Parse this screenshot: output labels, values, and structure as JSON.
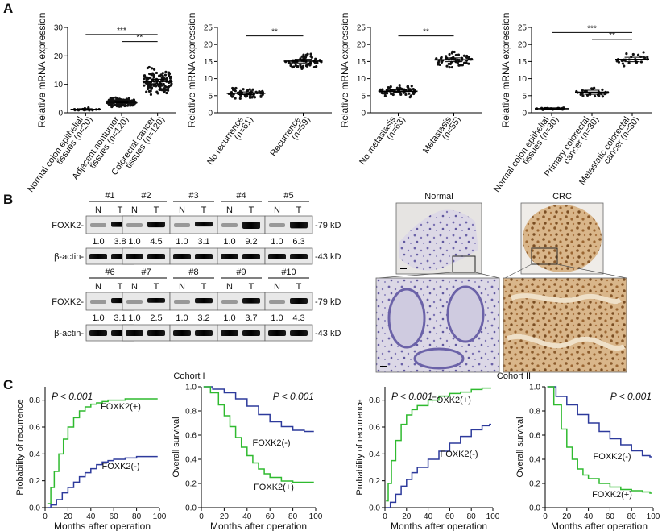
{
  "panel_labels": {
    "a": "A",
    "b": "B",
    "c": "C"
  },
  "chart_data": [
    {
      "type": "scatter",
      "ylabel": "Relative mRNA expression",
      "ylim": [
        0,
        30
      ],
      "yticks": [
        "0",
        "10",
        "20",
        "30"
      ],
      "groups": [
        {
          "line1": "Normal colon epithelial",
          "line2": "tissues (n=20)",
          "center": 1.2,
          "spread": 0.8,
          "n": 20
        },
        {
          "line1": "Adjacent nontumor",
          "line2": "tissues (n=120)",
          "center": 3.8,
          "spread": 2.5,
          "n": 120
        },
        {
          "line1": "Colorectal cancer",
          "line2": "tissues (n=120)",
          "center": 11.0,
          "spread": 7.0,
          "n": 120
        }
      ],
      "sig": [
        {
          "from": 0,
          "to": 2,
          "label": "***",
          "y": 27.5
        },
        {
          "from": 1,
          "to": 2,
          "label": "**",
          "y": 25
        }
      ]
    },
    {
      "type": "scatter",
      "ylabel": "Relative mRNA expression",
      "ylim": [
        0,
        25
      ],
      "yticks": [
        "0",
        "5",
        "10",
        "15",
        "20",
        "25"
      ],
      "groups": [
        {
          "line1": "No recurrence",
          "line2": "(n=61)",
          "center": 5.7,
          "spread": 2.6,
          "n": 61
        },
        {
          "line1": "Recurrence",
          "line2": "(n=59)",
          "center": 15.1,
          "spread": 3.5,
          "n": 59
        }
      ],
      "sig": [
        {
          "from": 0,
          "to": 1,
          "label": "**",
          "y": 22.5
        }
      ]
    },
    {
      "type": "scatter",
      "ylabel": "Relative mRNA expression",
      "ylim": [
        0,
        25
      ],
      "yticks": [
        "0",
        "5",
        "10",
        "15",
        "20",
        "25"
      ],
      "groups": [
        {
          "line1": "No metastasis",
          "line2": "(n=63)",
          "center": 6.3,
          "spread": 3.0,
          "n": 63
        },
        {
          "line1": "Metastasis",
          "line2": "(n=55)",
          "center": 15.5,
          "spread": 3.5,
          "n": 55
        }
      ],
      "sig": [
        {
          "from": 0,
          "to": 1,
          "label": "**",
          "y": 22.5
        }
      ]
    },
    {
      "type": "scatter",
      "ylabel": "Relative mRNA expression",
      "ylim": [
        0,
        25
      ],
      "yticks": [
        "0",
        "5",
        "10",
        "15",
        "20",
        "25"
      ],
      "groups": [
        {
          "line1": "Normal colon epithelial",
          "line2": "tissues (n=30)",
          "center": 1.2,
          "spread": 0.5,
          "n": 30
        },
        {
          "line1": "Primary colorectal",
          "line2": "cancer (n=30)",
          "center": 6.0,
          "spread": 2.8,
          "n": 30
        },
        {
          "line1": "Metastatic colorectal",
          "line2": "cancer (n=30)",
          "center": 15.6,
          "spread": 3.0,
          "n": 30
        }
      ],
      "sig": [
        {
          "from": 0,
          "to": 2,
          "label": "***",
          "y": 23.5
        },
        {
          "from": 1,
          "to": 2,
          "label": "**",
          "y": 21.5
        }
      ]
    },
    {
      "type": "line",
      "cohort": "Cohort I",
      "pvalue": "P < 0.001",
      "ylabel": "Probability of recurrence",
      "xlabel": "Months after operation",
      "xlim": [
        0,
        100
      ],
      "ylim": [
        0,
        0.9
      ],
      "xticks": [
        "0",
        "20",
        "40",
        "60",
        "80",
        "100"
      ],
      "yticks": [
        "0.0",
        "0.2",
        "0.4",
        "0.6",
        "0.8"
      ],
      "series": [
        {
          "name": "FOXK2(+)",
          "color": "#2fba2f",
          "x": [
            2,
            5,
            8,
            12,
            16,
            20,
            25,
            30,
            35,
            40,
            45,
            50,
            55,
            60,
            70,
            80,
            90,
            97
          ],
          "y": [
            0.03,
            0.15,
            0.27,
            0.4,
            0.51,
            0.6,
            0.67,
            0.72,
            0.75,
            0.77,
            0.78,
            0.79,
            0.8,
            0.8,
            0.81,
            0.81,
            0.81,
            0.81
          ]
        },
        {
          "name": "FOXK2(-)",
          "color": "#2d3a9c",
          "x": [
            2,
            5,
            10,
            15,
            20,
            25,
            30,
            35,
            40,
            45,
            50,
            55,
            60,
            70,
            80,
            90,
            97
          ],
          "y": [
            0.0,
            0.02,
            0.06,
            0.11,
            0.15,
            0.19,
            0.23,
            0.26,
            0.29,
            0.32,
            0.34,
            0.35,
            0.36,
            0.37,
            0.38,
            0.38,
            0.38
          ]
        }
      ]
    },
    {
      "type": "line",
      "pvalue": "P < 0.001",
      "ylabel": "Overall survival",
      "xlabel": "Months after operation",
      "xlim": [
        0,
        100
      ],
      "ylim": [
        0,
        1.0
      ],
      "xticks": [
        "0",
        "20",
        "40",
        "60",
        "80",
        "100"
      ],
      "yticks": [
        "0.0",
        "0.2",
        "0.4",
        "0.6",
        "0.8",
        "1.0"
      ],
      "series": [
        {
          "name": "FOXK2(-)",
          "color": "#2d3a9c",
          "x": [
            2,
            10,
            20,
            30,
            40,
            50,
            60,
            70,
            80,
            90,
            97
          ],
          "y": [
            1.0,
            0.98,
            0.95,
            0.9,
            0.84,
            0.77,
            0.71,
            0.67,
            0.64,
            0.63,
            0.63
          ]
        },
        {
          "name": "FOXK2(+)",
          "color": "#2fba2f",
          "x": [
            2,
            8,
            15,
            20,
            25,
            30,
            35,
            40,
            45,
            50,
            55,
            60,
            70,
            80,
            90,
            97
          ],
          "y": [
            1.0,
            0.95,
            0.85,
            0.76,
            0.67,
            0.58,
            0.5,
            0.43,
            0.37,
            0.32,
            0.28,
            0.25,
            0.22,
            0.21,
            0.21,
            0.21
          ]
        }
      ]
    },
    {
      "type": "line",
      "cohort": "Cohort II",
      "pvalue": "P < 0.001",
      "ylabel": "Probability of recurrence",
      "xlabel": "Months after operation",
      "xlim": [
        0,
        100
      ],
      "ylim": [
        0,
        0.9
      ],
      "xticks": [
        "0",
        "20",
        "40",
        "60",
        "80",
        "100"
      ],
      "yticks": [
        "0.0",
        "0.2",
        "0.4",
        "0.6",
        "0.8"
      ],
      "series": [
        {
          "name": "FOXK2(+)",
          "color": "#2fba2f",
          "x": [
            1,
            3,
            6,
            10,
            15,
            20,
            25,
            30,
            40,
            50,
            60,
            70,
            80,
            90,
            97
          ],
          "y": [
            0.05,
            0.18,
            0.35,
            0.5,
            0.62,
            0.69,
            0.73,
            0.76,
            0.8,
            0.83,
            0.85,
            0.86,
            0.88,
            0.89,
            0.89
          ]
        },
        {
          "name": "FOXK2(-)",
          "color": "#2d3a9c",
          "x": [
            1,
            5,
            10,
            15,
            20,
            25,
            30,
            40,
            50,
            60,
            70,
            80,
            90,
            97
          ],
          "y": [
            0.0,
            0.04,
            0.1,
            0.16,
            0.21,
            0.26,
            0.3,
            0.36,
            0.42,
            0.48,
            0.53,
            0.58,
            0.61,
            0.62
          ]
        }
      ]
    },
    {
      "type": "line",
      "pvalue": "P < 0.001",
      "ylabel": "Overall survival",
      "xlabel": "Months after operation",
      "xlim": [
        0,
        100
      ],
      "ylim": [
        0,
        1.0
      ],
      "xticks": [
        "0",
        "20",
        "40",
        "60",
        "80",
        "100"
      ],
      "yticks": [
        "0.0",
        "0.2",
        "0.4",
        "0.6",
        "0.8",
        "1.0"
      ],
      "series": [
        {
          "name": "FOXK2(-)",
          "color": "#2d3a9c",
          "x": [
            2,
            10,
            20,
            30,
            40,
            50,
            60,
            70,
            80,
            90,
            97
          ],
          "y": [
            1.0,
            0.92,
            0.85,
            0.77,
            0.7,
            0.63,
            0.57,
            0.52,
            0.47,
            0.43,
            0.42
          ]
        },
        {
          "name": "FOXK2(+)",
          "color": "#2fba2f",
          "x": [
            2,
            8,
            15,
            20,
            25,
            30,
            35,
            40,
            50,
            60,
            70,
            80,
            90,
            97
          ],
          "y": [
            1.0,
            0.85,
            0.65,
            0.5,
            0.4,
            0.32,
            0.27,
            0.24,
            0.2,
            0.17,
            0.15,
            0.14,
            0.13,
            0.12
          ]
        }
      ]
    }
  ],
  "western": {
    "rows": [
      {
        "samples": [
          "#1",
          "#2",
          "#3",
          "#4",
          "#5"
        ],
        "ratios": [
          [
            "1.0",
            "3.8"
          ],
          [
            "1.0",
            "4.5"
          ],
          [
            "1.0",
            "3.1"
          ],
          [
            "1.0",
            "9.2"
          ],
          [
            "1.0",
            "6.3"
          ]
        ]
      },
      {
        "samples": [
          "#6",
          "#7",
          "#8",
          "#9",
          "#10"
        ],
        "ratios": [
          [
            "1.0",
            "3.1"
          ],
          [
            "1.0",
            "2.5"
          ],
          [
            "1.0",
            "3.2"
          ],
          [
            "1.0",
            "3.7"
          ],
          [
            "1.0",
            "4.3"
          ]
        ]
      }
    ],
    "lane_n": "N",
    "lane_t": "T",
    "protein_label": "FOXK2-",
    "loading_label": "β-actin-",
    "protein_kd": "-79 kD",
    "loading_kd": "-43 kD"
  },
  "ihc": {
    "normal_label": "Normal",
    "crc_label": "CRC"
  }
}
